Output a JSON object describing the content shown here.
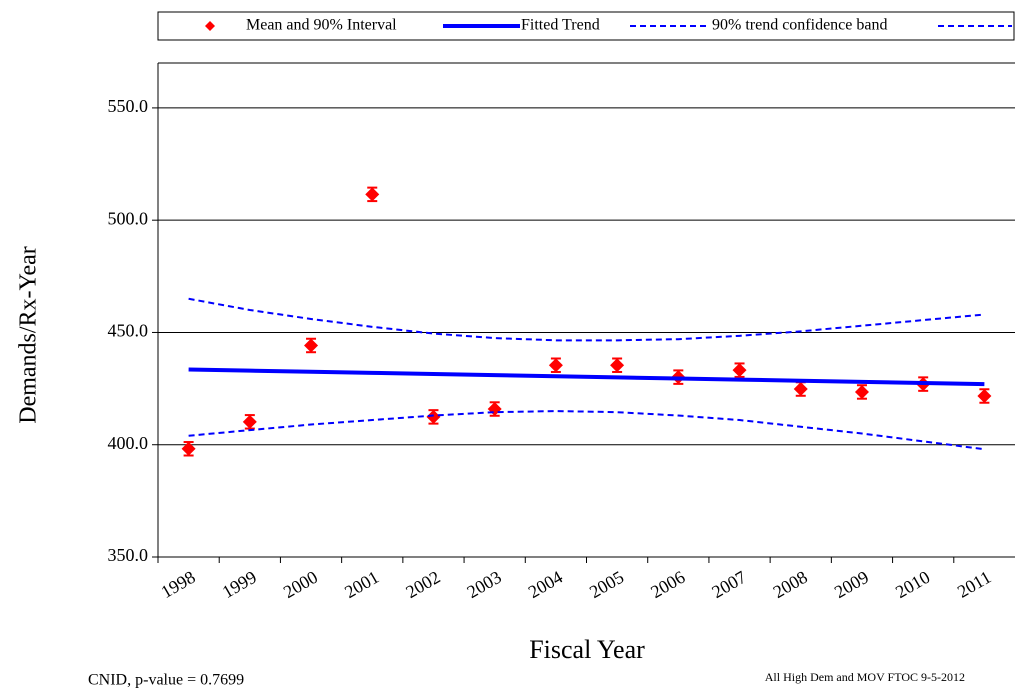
{
  "chart_data": {
    "type": "scatter-trend",
    "ylabel": "Demands/Rx-Year",
    "xlabel": "Fiscal Year",
    "footnote_left": "CNID, p-value = 0.7699",
    "footnote_right": "All High Dem and MOV FTOC 9-5-2012",
    "categories": [
      "1998",
      "1999",
      "2000",
      "2001",
      "2002",
      "2003",
      "2004",
      "2005",
      "2006",
      "2007",
      "2008",
      "2009",
      "2010",
      "2011"
    ],
    "ylim": [
      350,
      570
    ],
    "yticks": [
      {
        "value": 350,
        "label": "350.0"
      },
      {
        "value": 400,
        "label": "400.0"
      },
      {
        "value": 450,
        "label": "450.0"
      },
      {
        "value": 500,
        "label": "500.0"
      },
      {
        "value": 550,
        "label": "550.0"
      }
    ],
    "grid": true,
    "series": [
      {
        "name": "Mean and 90% Interval",
        "color": "#ff0000",
        "kind": "points",
        "values": [
          398.2,
          410.2,
          444.2,
          511.5,
          412.4,
          415.9,
          435.4,
          435.4,
          430.1,
          433.2,
          424.8,
          423.5,
          427.0,
          421.7
        ],
        "error": [
          3,
          3,
          3,
          3,
          3,
          3,
          3,
          3,
          3,
          3,
          3,
          3,
          3,
          3
        ]
      },
      {
        "name": "Fitted Trend",
        "color": "#0000ff",
        "kind": "line",
        "values": [
          433.5,
          433.0,
          432.5,
          432.0,
          431.5,
          431.0,
          430.5,
          430.0,
          429.5,
          429.0,
          428.5,
          428.0,
          427.5,
          427.0
        ]
      },
      {
        "name": "90% trend confidence band",
        "color": "#0000ff",
        "kind": "band",
        "values": [
          465,
          460,
          456,
          452.5,
          449.5,
          447.5,
          446.5,
          446.5,
          447,
          448.5,
          450.5,
          453,
          455.5,
          458
        ],
        "lower": [
          404,
          406.5,
          409,
          411,
          413,
          414.5,
          415,
          414.5,
          413,
          411,
          408,
          405,
          401.5,
          398
        ]
      }
    ]
  }
}
